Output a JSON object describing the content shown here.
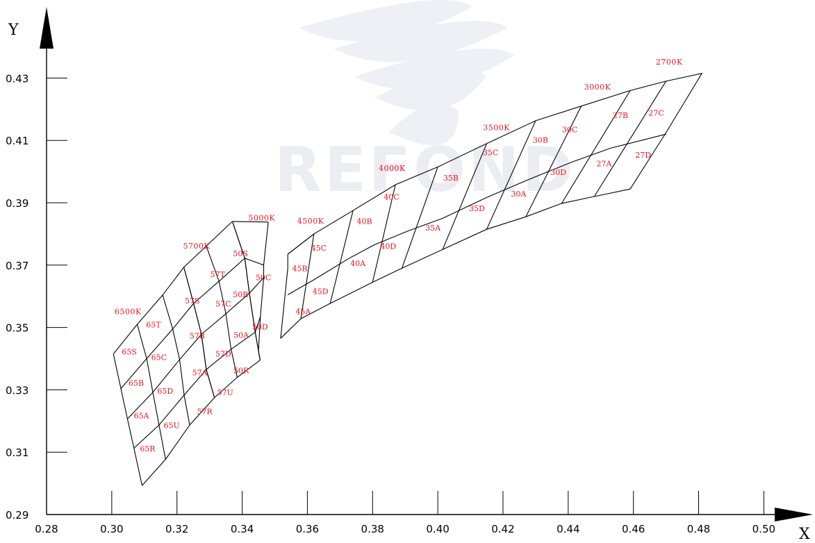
{
  "chart_data": {
    "type": "scatter",
    "title": "",
    "xlabel": "X",
    "ylabel": "Y",
    "xlim": [
      0.28,
      0.51
    ],
    "ylim": [
      0.29,
      0.44
    ],
    "x_ticks": [
      "0.28",
      "0.30",
      "0.32",
      "0.34",
      "0.36",
      "0.38",
      "0.40",
      "0.42",
      "0.44",
      "0.46",
      "0.48",
      "0.50"
    ],
    "y_ticks": [
      "0.29",
      "0.31",
      "0.33",
      "0.35",
      "0.37",
      "0.39",
      "0.41",
      "0.43"
    ],
    "cct_labels": [
      {
        "text": "6500K",
        "x": 0.305,
        "y": 0.3543
      },
      {
        "text": "5700K",
        "x": 0.326,
        "y": 0.3753
      },
      {
        "text": "5000K",
        "x": 0.346,
        "y": 0.3843
      },
      {
        "text": "4500K",
        "x": 0.361,
        "y": 0.3833
      },
      {
        "text": "4000K",
        "x": 0.386,
        "y": 0.4003
      },
      {
        "text": "3500K",
        "x": 0.418,
        "y": 0.4133
      },
      {
        "text": "3000K",
        "x": 0.449,
        "y": 0.4263
      },
      {
        "text": "2700K",
        "x": 0.471,
        "y": 0.4343
      }
    ],
    "groups": [
      {
        "name": "65",
        "grid": [
          [
            [
              0.3005,
              0.3415
            ],
            [
              0.3078,
              0.351
            ],
            [
              0.3156,
              0.3604
            ],
            [
              0.3221,
              0.3693
            ]
          ],
          [
            [
              0.3028,
              0.3304
            ],
            [
              0.3107,
              0.34
            ],
            [
              0.3187,
              0.3495
            ],
            [
              0.3251,
              0.3577
            ]
          ],
          [
            [
              0.3048,
              0.3207
            ],
            [
              0.3126,
              0.3292
            ],
            [
              0.3208,
              0.3397
            ],
            [
              0.3275,
              0.3478
            ]
          ],
          [
            [
              0.3068,
              0.3113
            ],
            [
              0.3145,
              0.3187
            ],
            [
              0.3222,
              0.3283
            ],
            [
              0.329,
              0.3365
            ]
          ],
          [
            [
              0.3093,
              0.2993
            ],
            [
              0.3165,
              0.3077
            ],
            [
              0.3239,
              0.3187
            ],
            [
              0.3315,
              0.3275
            ]
          ]
        ],
        "labels": [
          {
            "text": "65T",
            "x": 0.3128,
            "y": 0.35
          },
          {
            "text": "65S",
            "x": 0.3054,
            "y": 0.3413
          },
          {
            "text": "65C",
            "x": 0.3145,
            "y": 0.3395
          },
          {
            "text": "65B",
            "x": 0.3075,
            "y": 0.3313
          },
          {
            "text": "65D",
            "x": 0.3164,
            "y": 0.3287
          },
          {
            "text": "65A",
            "x": 0.3091,
            "y": 0.3208
          },
          {
            "text": "65U",
            "x": 0.3184,
            "y": 0.3177
          },
          {
            "text": "65R",
            "x": 0.311,
            "y": 0.3103
          }
        ]
      },
      {
        "name": "57",
        "grid": [
          [
            [
              0.3221,
              0.3693
            ],
            [
              0.329,
              0.3761
            ],
            [
              0.337,
              0.384
            ]
          ],
          [
            [
              0.3251,
              0.3577
            ],
            [
              0.3329,
              0.3648
            ],
            [
              0.3408,
              0.3722
            ]
          ],
          [
            [
              0.3275,
              0.3478
            ],
            [
              0.335,
              0.3544
            ],
            [
              0.3422,
              0.361
            ]
          ],
          [
            [
              0.329,
              0.3365
            ],
            [
              0.3366,
              0.343
            ],
            [
              0.344,
              0.3485
            ]
          ],
          [
            [
              0.3315,
              0.3275
            ],
            [
              0.3385,
              0.334
            ],
            [
              0.3455,
              0.3395
            ]
          ]
        ],
        "labels": [
          {
            "text": "57T",
            "x": 0.3325,
            "y": 0.3662
          },
          {
            "text": "57S",
            "x": 0.3247,
            "y": 0.3577
          },
          {
            "text": "57C",
            "x": 0.3342,
            "y": 0.3567
          },
          {
            "text": "57B",
            "x": 0.3262,
            "y": 0.3465
          },
          {
            "text": "57D",
            "x": 0.3342,
            "y": 0.3407
          },
          {
            "text": "57A",
            "x": 0.327,
            "y": 0.3347
          },
          {
            "text": "57U",
            "x": 0.3348,
            "y": 0.3283
          },
          {
            "text": "57R",
            "x": 0.3285,
            "y": 0.3222
          }
        ]
      },
      {
        "name": "50",
        "grid": [
          [
            [
              0.337,
              0.384
            ],
            [
              0.348,
              0.3838
            ]
          ],
          [
            [
              0.3408,
              0.3722
            ],
            [
              0.3466,
              0.37
            ]
          ],
          [
            [
              0.3422,
              0.361
            ],
            [
              0.3466,
              0.366
            ]
          ],
          [
            [
              0.344,
              0.3485
            ],
            [
              0.3456,
              0.3535
            ]
          ],
          [
            [
              0.3455,
              0.3395
            ],
            [
              0.345,
              0.3425
            ]
          ]
        ],
        "labels": []
      }
    ],
    "bins": [
      {
        "text": "50S",
        "x": 0.3395,
        "y": 0.3729
      },
      {
        "text": "50C",
        "x": 0.3465,
        "y": 0.3652
      },
      {
        "text": "50B",
        "x": 0.3395,
        "y": 0.3597
      },
      {
        "text": "50D",
        "x": 0.3455,
        "y": 0.3493
      },
      {
        "text": "50A",
        "x": 0.3397,
        "y": 0.3467
      },
      {
        "text": "50R",
        "x": 0.3397,
        "y": 0.3353
      },
      {
        "text": "45B",
        "x": 0.3577,
        "y": 0.3681
      },
      {
        "text": "45C",
        "x": 0.3635,
        "y": 0.3746
      },
      {
        "text": "45D",
        "x": 0.364,
        "y": 0.3607
      },
      {
        "text": "45A",
        "x": 0.3587,
        "y": 0.3543
      },
      {
        "text": "40B",
        "x": 0.3775,
        "y": 0.3832
      },
      {
        "text": "40C",
        "x": 0.3858,
        "y": 0.391
      },
      {
        "text": "40A",
        "x": 0.3755,
        "y": 0.3697
      },
      {
        "text": "40D",
        "x": 0.3848,
        "y": 0.3752
      },
      {
        "text": "35B",
        "x": 0.404,
        "y": 0.3971
      },
      {
        "text": "35C",
        "x": 0.4162,
        "y": 0.4053
      },
      {
        "text": "35A",
        "x": 0.3985,
        "y": 0.3811
      },
      {
        "text": "35D",
        "x": 0.412,
        "y": 0.3873
      },
      {
        "text": "30B",
        "x": 0.4315,
        "y": 0.4093
      },
      {
        "text": "30C",
        "x": 0.4405,
        "y": 0.4126
      },
      {
        "text": "30A",
        "x": 0.4248,
        "y": 0.392
      },
      {
        "text": "30D",
        "x": 0.437,
        "y": 0.3989
      },
      {
        "text": "27B",
        "x": 0.456,
        "y": 0.4172
      },
      {
        "text": "27C",
        "x": 0.467,
        "y": 0.418
      },
      {
        "text": "27A",
        "x": 0.451,
        "y": 0.4017
      },
      {
        "text": "27D",
        "x": 0.463,
        "y": 0.4045
      }
    ],
    "polylines": [
      [
        [
          0.3518,
          0.3465
        ],
        [
          0.358,
          0.3528
        ],
        [
          0.367,
          0.3577
        ],
        [
          0.38,
          0.3645
        ],
        [
          0.389,
          0.369
        ],
        [
          0.4015,
          0.375
        ],
        [
          0.415,
          0.3815
        ],
        [
          0.427,
          0.3855
        ],
        [
          0.438,
          0.3898
        ],
        [
          0.448,
          0.392
        ],
        [
          0.459,
          0.3944
        ],
        [
          0.47,
          0.4125
        ],
        [
          0.481,
          0.4315
        ],
        [
          0.47,
          0.429
        ],
        [
          0.459,
          0.426
        ],
        [
          0.444,
          0.421
        ],
        [
          0.43,
          0.4163
        ],
        [
          0.415,
          0.409
        ],
        [
          0.4,
          0.4015
        ],
        [
          0.387,
          0.3958
        ],
        [
          0.374,
          0.3875
        ],
        [
          0.362,
          0.38
        ],
        [
          0.354,
          0.3735
        ],
        [
          0.354,
          0.369
        ],
        [
          0.3518,
          0.3465
        ]
      ],
      [
        [
          0.354,
          0.3735
        ],
        [
          0.362,
          0.38
        ]
      ],
      [
        [
          0.354,
          0.3605
        ],
        [
          0.362,
          0.3653
        ],
        [
          0.3725,
          0.372
        ],
        [
          0.3805,
          0.3765
        ],
        [
          0.391,
          0.381
        ],
        [
          0.4015,
          0.385
        ],
        [
          0.415,
          0.3917
        ],
        [
          0.428,
          0.3975
        ],
        [
          0.441,
          0.403
        ],
        [
          0.453,
          0.4075
        ],
        [
          0.47,
          0.412
        ]
      ],
      [
        [
          0.358,
          0.3528
        ],
        [
          0.362,
          0.38
        ]
      ],
      [
        [
          0.367,
          0.3577
        ],
        [
          0.374,
          0.3875
        ]
      ],
      [
        [
          0.38,
          0.3645
        ],
        [
          0.387,
          0.3958
        ]
      ],
      [
        [
          0.389,
          0.369
        ],
        [
          0.4,
          0.4015
        ]
      ],
      [
        [
          0.4015,
          0.375
        ],
        [
          0.415,
          0.409
        ]
      ],
      [
        [
          0.415,
          0.3815
        ],
        [
          0.43,
          0.4163
        ]
      ],
      [
        [
          0.427,
          0.3855
        ],
        [
          0.444,
          0.421
        ]
      ],
      [
        [
          0.438,
          0.3898
        ],
        [
          0.459,
          0.426
        ]
      ],
      [
        [
          0.448,
          0.392
        ],
        [
          0.47,
          0.429
        ]
      ]
    ],
    "watermark": "REFOND"
  }
}
